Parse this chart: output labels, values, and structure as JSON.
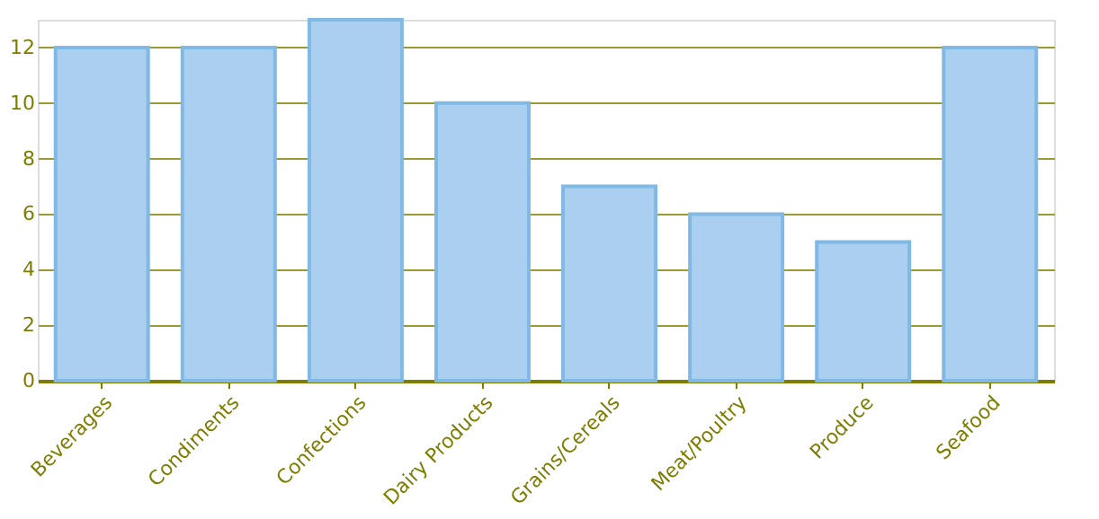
{
  "chart_data": {
    "type": "bar",
    "categories": [
      "Beverages",
      "Condiments",
      "Confections",
      "Dairy Products",
      "Grains/Cereals",
      "Meat/Poultry",
      "Produce",
      "Seafood"
    ],
    "values": [
      12,
      12,
      13,
      10,
      7,
      6,
      5,
      12
    ],
    "color": "#abcfee",
    "ylim": [
      0,
      13
    ],
    "yticks": [
      0,
      2,
      4,
      6,
      8,
      10,
      12
    ],
    "grid": "y"
  }
}
